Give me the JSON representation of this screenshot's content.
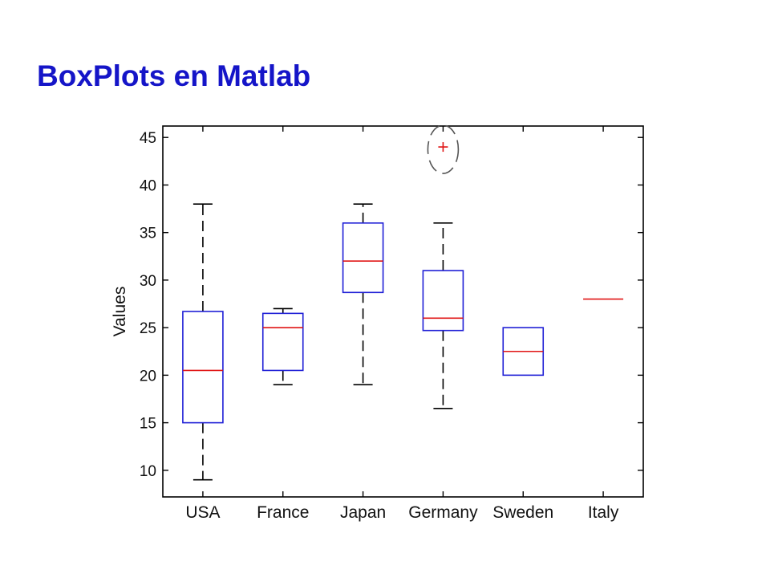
{
  "slide": {
    "title": "BoxPlots en Matlab"
  },
  "colors": {
    "title": "#1515c8",
    "box": "#1f1fd6",
    "median": "#e01414",
    "whisker": "#000000",
    "outlier": "#e01414",
    "highlight": "#555555"
  },
  "chart_data": {
    "type": "boxplot",
    "ylabel": "Values",
    "xlabel": "",
    "ylim": [
      7.2,
      46.2
    ],
    "yticks": [
      10,
      15,
      20,
      25,
      30,
      35,
      40,
      45
    ],
    "grid": false,
    "categories": [
      "USA",
      "France",
      "Japan",
      "Germany",
      "Sweden",
      "Italy"
    ],
    "boxes": [
      {
        "category": "USA",
        "whisker_low": 9,
        "q1": 15,
        "median": 20.5,
        "q3": 26.7,
        "whisker_high": 38,
        "outliers": []
      },
      {
        "category": "France",
        "whisker_low": 19,
        "q1": 20.5,
        "median": 25,
        "q3": 26.5,
        "whisker_high": 27,
        "outliers": []
      },
      {
        "category": "Japan",
        "whisker_low": 19,
        "q1": 28.7,
        "median": 32,
        "q3": 36,
        "whisker_high": 38,
        "outliers": []
      },
      {
        "category": "Germany",
        "whisker_low": 16.5,
        "q1": 24.7,
        "median": 26,
        "q3": 31,
        "whisker_high": 36,
        "outliers": [
          44
        ]
      },
      {
        "category": "Sweden",
        "whisker_low": 20,
        "q1": 20,
        "median": 22.5,
        "q3": 25,
        "whisker_high": 25,
        "outliers": []
      },
      {
        "category": "Italy",
        "whisker_low": 28,
        "q1": 28,
        "median": 28,
        "q3": 28,
        "whisker_high": 28,
        "outliers": []
      }
    ],
    "highlighted_outlier": {
      "category": "Germany",
      "value": 44
    }
  }
}
